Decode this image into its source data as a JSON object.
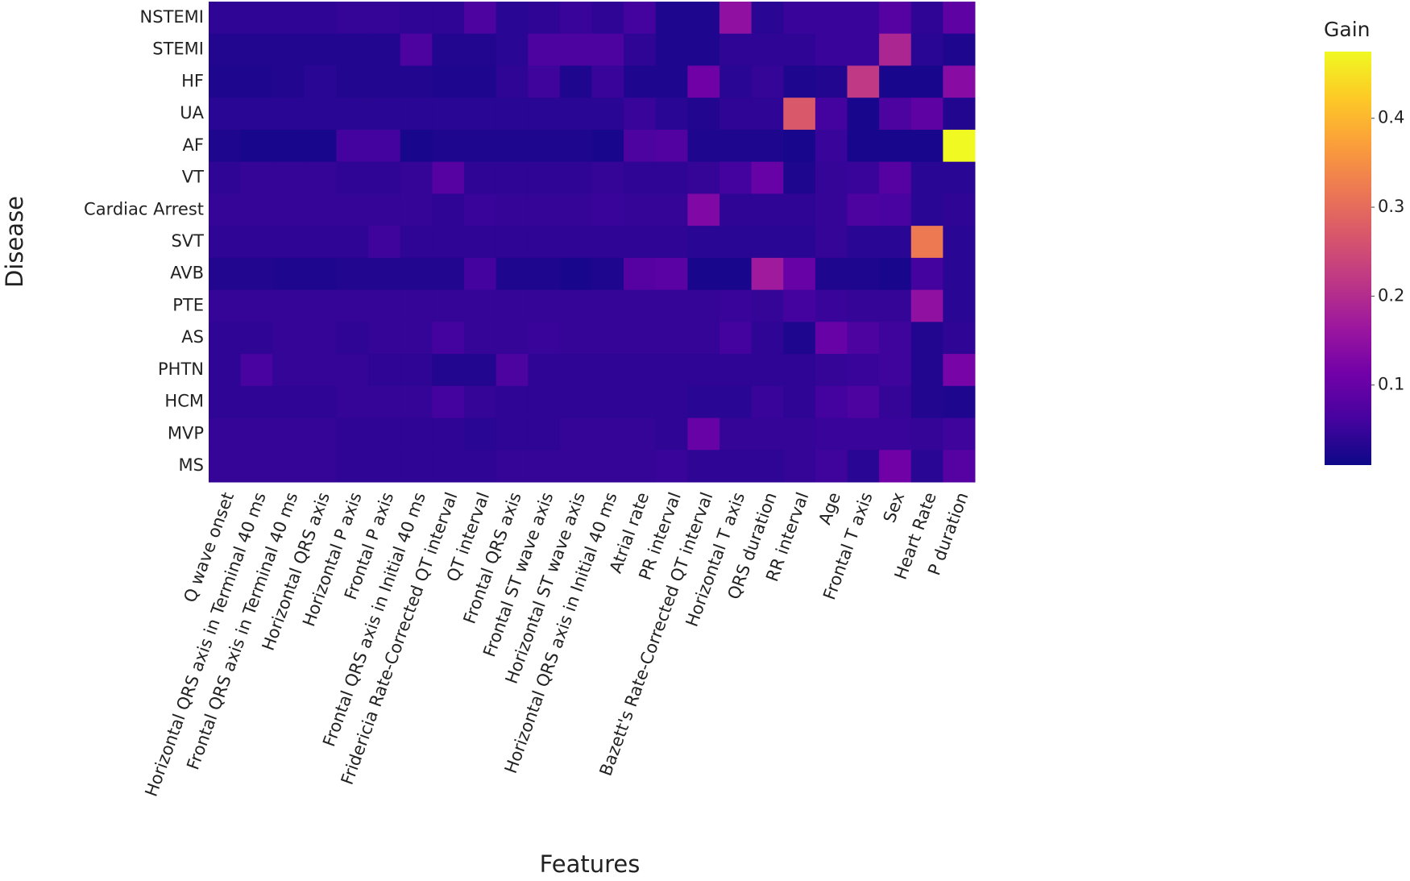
{
  "chart_data": {
    "type": "heatmap",
    "x_label": "Features",
    "y_label": "Disease",
    "colorbar_title": "Gain",
    "x": [
      "Q wave onset",
      "Horizontal QRS axis in Terminal 40 ms",
      "Frontal QRS axis in Terminal 40 ms",
      "Horizontal QRS axis",
      "Horizontal P axis",
      "Frontal P axis",
      "Frontal QRS axis in Initial 40 ms",
      "Fridericia Rate-Corrected QT interval",
      "QT interval",
      "Frontal QRS axis",
      "Frontal ST wave axis",
      "Horizontal ST wave axis",
      "Horizontal QRS axis in Initial 40 ms",
      "Atrial rate",
      "PR interval",
      "Bazett's Rate-Corrected QT interval",
      "Horizontal T axis",
      "QRS duration",
      "RR interval",
      "Age",
      "Frontal T axis",
      "Sex",
      "Heart Rate",
      "P duration"
    ],
    "y": [
      "NSTEMI",
      "STEMI",
      "HF",
      "UA",
      "AF",
      "VT",
      "Cardiac Arrest",
      "SVT",
      "AVB",
      "PTE",
      "AS",
      "PHTN",
      "HCM",
      "MVP",
      "MS"
    ],
    "z": [
      [
        0.04,
        0.04,
        0.04,
        0.04,
        0.045,
        0.045,
        0.04,
        0.04,
        0.07,
        0.035,
        0.04,
        0.05,
        0.04,
        0.06,
        0.025,
        0.025,
        0.15,
        0.035,
        0.05,
        0.05,
        0.05,
        0.08,
        0.04,
        0.09
      ],
      [
        0.03,
        0.03,
        0.03,
        0.03,
        0.03,
        0.03,
        0.07,
        0.03,
        0.03,
        0.035,
        0.07,
        0.07,
        0.07,
        0.04,
        0.025,
        0.025,
        0.04,
        0.04,
        0.04,
        0.05,
        0.05,
        0.19,
        0.035,
        0.025
      ],
      [
        0.025,
        0.025,
        0.03,
        0.035,
        0.03,
        0.03,
        0.03,
        0.025,
        0.025,
        0.04,
        0.055,
        0.025,
        0.05,
        0.025,
        0.025,
        0.11,
        0.035,
        0.045,
        0.025,
        0.03,
        0.22,
        0.02,
        0.02,
        0.14
      ],
      [
        0.035,
        0.035,
        0.035,
        0.035,
        0.035,
        0.035,
        0.035,
        0.035,
        0.035,
        0.035,
        0.035,
        0.035,
        0.035,
        0.05,
        0.035,
        0.03,
        0.04,
        0.04,
        0.27,
        0.06,
        0.02,
        0.07,
        0.09,
        0.03
      ],
      [
        0.025,
        0.02,
        0.02,
        0.02,
        0.06,
        0.06,
        0.02,
        0.025,
        0.025,
        0.025,
        0.025,
        0.025,
        0.02,
        0.07,
        0.075,
        0.025,
        0.025,
        0.025,
        0.02,
        0.05,
        0.02,
        0.02,
        0.02,
        0.475
      ],
      [
        0.04,
        0.045,
        0.045,
        0.045,
        0.04,
        0.04,
        0.045,
        0.08,
        0.04,
        0.04,
        0.04,
        0.04,
        0.045,
        0.04,
        0.04,
        0.045,
        0.06,
        0.1,
        0.025,
        0.045,
        0.05,
        0.08,
        0.035,
        0.035
      ],
      [
        0.045,
        0.045,
        0.045,
        0.045,
        0.045,
        0.045,
        0.045,
        0.04,
        0.05,
        0.045,
        0.045,
        0.045,
        0.05,
        0.045,
        0.045,
        0.13,
        0.04,
        0.04,
        0.04,
        0.045,
        0.07,
        0.065,
        0.035,
        0.04
      ],
      [
        0.04,
        0.04,
        0.04,
        0.04,
        0.04,
        0.055,
        0.04,
        0.04,
        0.04,
        0.04,
        0.04,
        0.04,
        0.04,
        0.04,
        0.04,
        0.035,
        0.035,
        0.035,
        0.035,
        0.045,
        0.035,
        0.035,
        0.32,
        0.035
      ],
      [
        0.03,
        0.03,
        0.025,
        0.025,
        0.03,
        0.03,
        0.03,
        0.03,
        0.06,
        0.025,
        0.025,
        0.02,
        0.025,
        0.08,
        0.085,
        0.02,
        0.02,
        0.17,
        0.1,
        0.025,
        0.025,
        0.02,
        0.06,
        0.035
      ],
      [
        0.045,
        0.045,
        0.045,
        0.045,
        0.045,
        0.045,
        0.045,
        0.045,
        0.045,
        0.045,
        0.045,
        0.045,
        0.045,
        0.045,
        0.045,
        0.045,
        0.05,
        0.045,
        0.06,
        0.05,
        0.045,
        0.045,
        0.15,
        0.035
      ],
      [
        0.04,
        0.04,
        0.045,
        0.045,
        0.04,
        0.045,
        0.045,
        0.06,
        0.045,
        0.045,
        0.05,
        0.045,
        0.045,
        0.045,
        0.045,
        0.045,
        0.06,
        0.04,
        0.025,
        0.1,
        0.07,
        0.055,
        0.03,
        0.04
      ],
      [
        0.04,
        0.065,
        0.045,
        0.045,
        0.045,
        0.04,
        0.04,
        0.03,
        0.03,
        0.07,
        0.04,
        0.04,
        0.04,
        0.04,
        0.04,
        0.04,
        0.04,
        0.04,
        0.04,
        0.045,
        0.05,
        0.055,
        0.03,
        0.12
      ],
      [
        0.04,
        0.04,
        0.04,
        0.04,
        0.045,
        0.045,
        0.045,
        0.06,
        0.045,
        0.04,
        0.04,
        0.04,
        0.04,
        0.04,
        0.04,
        0.035,
        0.035,
        0.05,
        0.04,
        0.06,
        0.07,
        0.045,
        0.03,
        0.025
      ],
      [
        0.045,
        0.045,
        0.045,
        0.045,
        0.04,
        0.04,
        0.04,
        0.04,
        0.035,
        0.04,
        0.04,
        0.045,
        0.045,
        0.045,
        0.04,
        0.1,
        0.045,
        0.045,
        0.045,
        0.05,
        0.05,
        0.05,
        0.045,
        0.055
      ],
      [
        0.045,
        0.045,
        0.045,
        0.045,
        0.04,
        0.04,
        0.04,
        0.04,
        0.04,
        0.045,
        0.045,
        0.045,
        0.045,
        0.045,
        0.05,
        0.04,
        0.04,
        0.04,
        0.045,
        0.055,
        0.035,
        0.11,
        0.035,
        0.08
      ]
    ],
    "zlim": [
      0.01,
      0.475
    ],
    "zticks": [
      0.1,
      0.2,
      0.3,
      0.4
    ],
    "colorscale": "plasma"
  }
}
